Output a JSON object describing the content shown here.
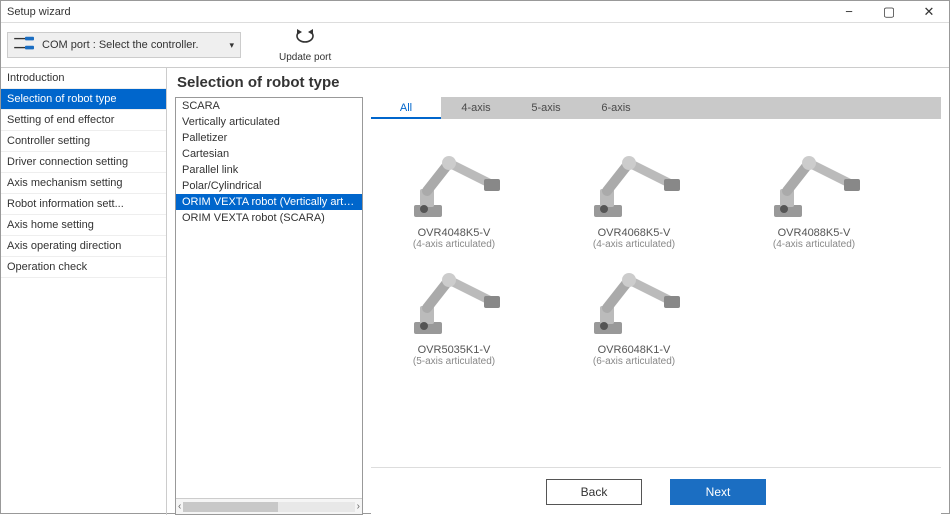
{
  "window": {
    "title": "Setup wizard"
  },
  "toolbar": {
    "com_port_label": "COM port : Select the controller.",
    "update_port_label": "Update port"
  },
  "nav": {
    "items": [
      {
        "label": "Introduction",
        "selected": false
      },
      {
        "label": "Selection of robot type",
        "selected": true
      },
      {
        "label": "Setting of end effector",
        "selected": false
      },
      {
        "label": "Controller setting",
        "selected": false
      },
      {
        "label": "Driver connection setting",
        "selected": false
      },
      {
        "label": "Axis mechanism setting",
        "selected": false
      },
      {
        "label": "Robot information sett...",
        "selected": false
      },
      {
        "label": "Axis home setting",
        "selected": false
      },
      {
        "label": "Axis operating direction",
        "selected": false
      },
      {
        "label": "Operation check",
        "selected": false
      }
    ]
  },
  "main": {
    "heading": "Selection of robot type",
    "type_list": {
      "items": [
        {
          "label": "SCARA",
          "selected": false
        },
        {
          "label": "Vertically articulated",
          "selected": false
        },
        {
          "label": "Palletizer",
          "selected": false
        },
        {
          "label": "Cartesian",
          "selected": false
        },
        {
          "label": "Parallel link",
          "selected": false
        },
        {
          "label": "Polar/Cylindrical",
          "selected": false
        },
        {
          "label": "ORIM VEXTA robot (Vertically articulated)",
          "selected": true
        },
        {
          "label": "ORIM VEXTA robot (SCARA)",
          "selected": false
        }
      ]
    },
    "tabs": [
      {
        "label": "All",
        "active": true
      },
      {
        "label": "4-axis",
        "active": false
      },
      {
        "label": "5-axis",
        "active": false
      },
      {
        "label": "6-axis",
        "active": false
      }
    ],
    "robots": [
      {
        "name": "OVR4048K5-V",
        "sub": "(4-axis articulated)"
      },
      {
        "name": "OVR4068K5-V",
        "sub": "(4-axis articulated)"
      },
      {
        "name": "OVR4088K5-V",
        "sub": "(4-axis articulated)"
      },
      {
        "name": "OVR5035K1-V",
        "sub": "(5-axis articulated)"
      },
      {
        "name": "OVR6048K1-V",
        "sub": "(6-axis articulated)"
      }
    ]
  },
  "footer": {
    "back_label": "Back",
    "next_label": "Next"
  },
  "colors": {
    "accent": "#0066cc",
    "next_button": "#1b6ec2",
    "text_muted": "#888888",
    "robot_gray": "#bbbbbb"
  }
}
